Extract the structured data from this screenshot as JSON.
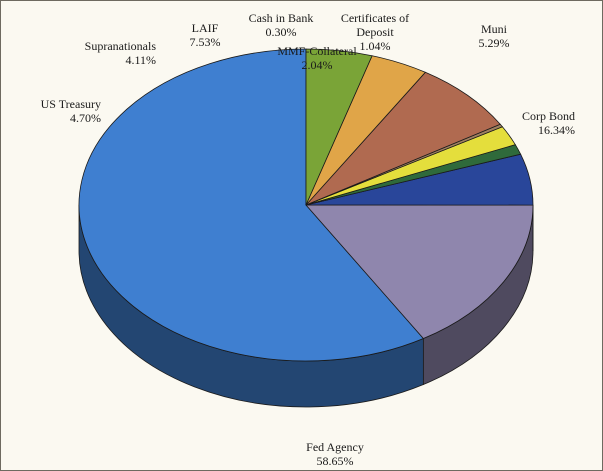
{
  "chart_data": {
    "type": "pie",
    "title": "",
    "categories": [
      "Fed Agency",
      "Corp Bond",
      "Muni",
      "Certificates of Deposit",
      "MMF-Collateral",
      "Cash in Bank",
      "LAIF",
      "Supranationals",
      "US Treasury"
    ],
    "values": [
      58.65,
      16.34,
      5.29,
      1.04,
      2.04,
      0.3,
      7.53,
      4.11,
      4.7
    ],
    "value_labels": [
      "58.65%",
      "16.34%",
      "5.29%",
      "1.04%",
      "2.04%",
      "0.30%",
      "7.53%",
      "4.11%",
      "4.70%"
    ],
    "colors": [
      "#3f7fd0",
      "#8f86ad",
      "#29469a",
      "#2f6a3b",
      "#e4de3c",
      "#a08060",
      "#b06a50",
      "#e0a548",
      "#7aa437"
    ],
    "legend": "none",
    "style": "3d"
  }
}
